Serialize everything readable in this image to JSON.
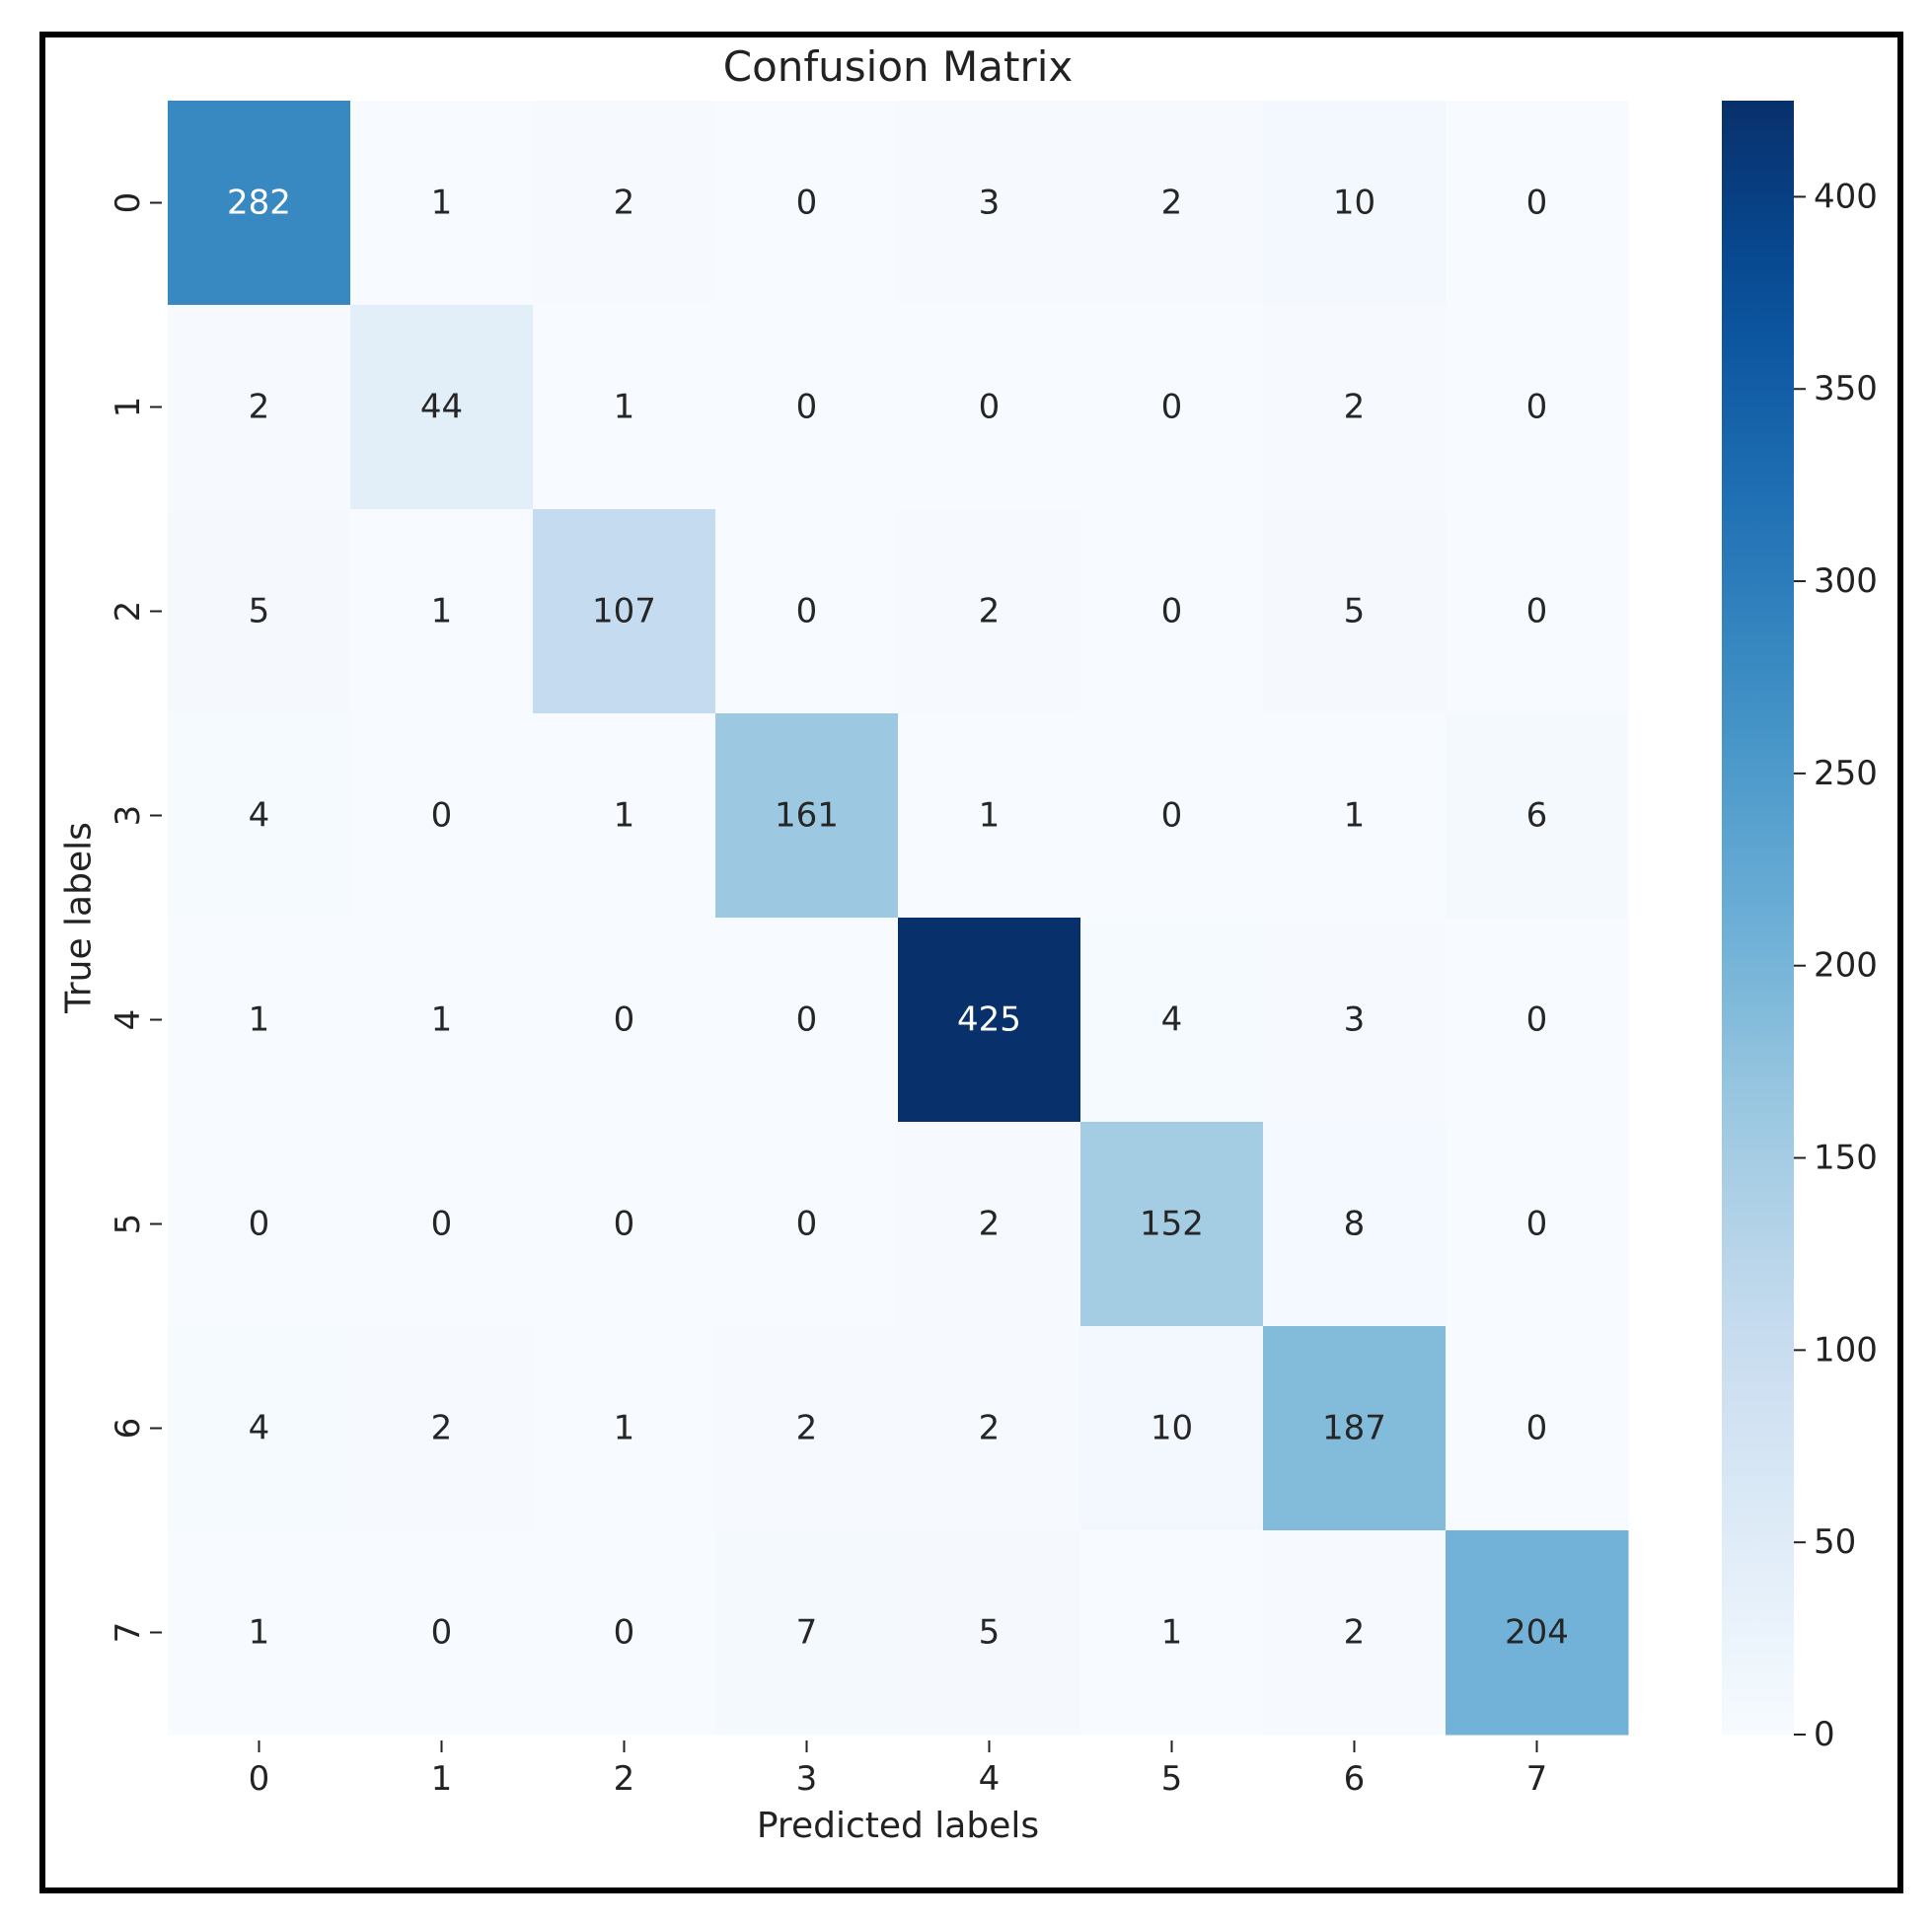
{
  "chart_data": {
    "type": "heatmap",
    "title": "Confusion Matrix",
    "xlabel": "Predicted labels",
    "ylabel": "True labels",
    "x_categories": [
      "0",
      "1",
      "2",
      "3",
      "4",
      "5",
      "6",
      "7"
    ],
    "y_categories": [
      "0",
      "1",
      "2",
      "3",
      "4",
      "5",
      "6",
      "7"
    ],
    "values": [
      [
        282,
        1,
        2,
        0,
        3,
        2,
        10,
        0
      ],
      [
        2,
        44,
        1,
        0,
        0,
        0,
        2,
        0
      ],
      [
        5,
        1,
        107,
        0,
        2,
        0,
        5,
        0
      ],
      [
        4,
        0,
        1,
        161,
        1,
        0,
        1,
        6
      ],
      [
        1,
        1,
        0,
        0,
        425,
        4,
        3,
        0
      ],
      [
        0,
        0,
        0,
        0,
        2,
        152,
        8,
        0
      ],
      [
        4,
        2,
        1,
        2,
        2,
        10,
        187,
        0
      ],
      [
        1,
        0,
        0,
        7,
        5,
        1,
        2,
        204
      ]
    ],
    "colormap": "Blues",
    "vmin": 0,
    "vmax": 425,
    "colorbar_ticks": [
      0,
      50,
      100,
      150,
      200,
      250,
      300,
      350,
      400
    ],
    "colorbar_tick_labels": [
      "0",
      "50",
      "100",
      "150",
      "200",
      "250",
      "300",
      "350",
      "400"
    ]
  }
}
